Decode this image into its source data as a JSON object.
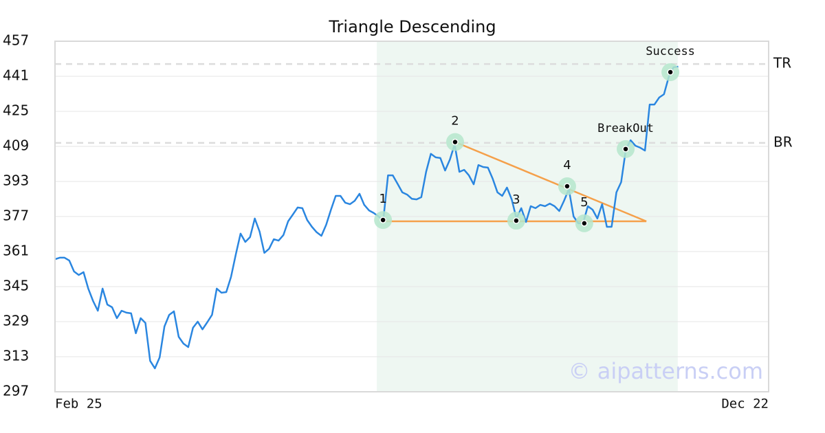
{
  "chart_data": {
    "type": "line",
    "title": "Triangle Descending",
    "color": "#2a86e0",
    "x": [
      0,
      2,
      4,
      6,
      8,
      10,
      12,
      14,
      16,
      18,
      20,
      22,
      24,
      26,
      28,
      30,
      32,
      34,
      36,
      38,
      40,
      42,
      44,
      46,
      48,
      50,
      52,
      54,
      56,
      58,
      60,
      62,
      64,
      66,
      68,
      70,
      72,
      74,
      76,
      78,
      80,
      82,
      84,
      86,
      88,
      90,
      92,
      94,
      96,
      98,
      100,
      102,
      104,
      106,
      108,
      110,
      112,
      114,
      116,
      118,
      120,
      122,
      124,
      126,
      128,
      130,
      132,
      134,
      136,
      138,
      140,
      142,
      144,
      146,
      148,
      150,
      152,
      154,
      156,
      158,
      160,
      162,
      164,
      166,
      168,
      170,
      172,
      174,
      176,
      178,
      180,
      182,
      184,
      186,
      188,
      190,
      192,
      194,
      196,
      198,
      200,
      202,
      204,
      206,
      208,
      210,
      212,
      214,
      216,
      218,
      220,
      222,
      224,
      226,
      228,
      230,
      232,
      234,
      236,
      238,
      240,
      242,
      244,
      246,
      248,
      250,
      252,
      254,
      256,
      258,
      260,
      262
    ],
    "values": [
      357.5,
      358.2,
      358.2,
      356.9,
      351.9,
      350.3,
      351.6,
      344.1,
      338.4,
      334.0,
      344.1,
      336.8,
      335.6,
      330.6,
      334.0,
      333.1,
      332.8,
      323.7,
      330.6,
      328.4,
      311.1,
      307.7,
      312.7,
      326.8,
      332.1,
      333.7,
      322.1,
      319.0,
      317.4,
      326.2,
      329.0,
      325.5,
      328.7,
      332.1,
      344.1,
      342.2,
      342.5,
      349.4,
      359.7,
      369.2,
      365.4,
      367.6,
      376.1,
      370.1,
      360.4,
      362.3,
      366.6,
      366.0,
      368.5,
      374.8,
      377.9,
      381.1,
      380.8,
      375.4,
      372.3,
      369.8,
      368.2,
      373.2,
      380.1,
      386.4,
      386.4,
      383.3,
      382.6,
      384.2,
      387.4,
      382.3,
      379.8,
      378.6,
      377.0,
      375.4,
      395.8,
      395.8,
      392.0,
      388.0,
      387.0,
      385.1,
      384.8,
      385.8,
      397.4,
      405.6,
      404.0,
      403.7,
      398.0,
      403.0,
      409.9,
      397.4,
      398.3,
      395.8,
      391.7,
      400.5,
      399.6,
      399.3,
      394.3,
      388.0,
      386.4,
      390.2,
      384.8,
      376.1,
      380.8,
      374.5,
      381.7,
      380.8,
      382.3,
      381.7,
      382.9,
      381.7,
      379.5,
      384.2,
      389.5,
      377.0,
      373.9,
      373.9,
      381.7,
      380.1,
      376.1,
      382.6,
      372.3,
      372.3,
      388.0,
      392.7,
      407.7,
      411.8,
      409.3,
      408.4,
      407.1,
      428.1,
      428.1,
      431.3,
      432.8,
      440.7,
      445.1,
      445.4
    ],
    "xlim": [
      0,
      300
    ],
    "xticks": [
      {
        "value": 0,
        "label": "Feb 25"
      },
      {
        "value": 300,
        "label": "Dec 22"
      }
    ],
    "ylim": [
      297,
      457
    ],
    "yticks": [
      297,
      313,
      329,
      345,
      361,
      377,
      393,
      409,
      425,
      441,
      457
    ],
    "grid": true,
    "highlight_range": [
      135.3,
      261.8
    ],
    "reference_lines": [
      {
        "label": "TR",
        "value": 446.6
      },
      {
        "label": "BR",
        "value": 410.6
      }
    ],
    "trend_lines": [
      {
        "x": [
          138,
          248.6
        ],
        "values": [
          374.8,
          374.8
        ],
        "color": "#f5a04a"
      },
      {
        "x": [
          168.2,
          248.6
        ],
        "values": [
          411.0,
          374.8
        ],
        "color": "#f5a04a"
      }
    ],
    "pattern_points": [
      {
        "label": "1",
        "x": 137.9,
        "value": 375.4
      },
      {
        "label": "2",
        "x": 168.2,
        "value": 411.0
      },
      {
        "label": "3",
        "x": 193.9,
        "value": 375.1
      },
      {
        "label": "4",
        "x": 215.3,
        "value": 390.8
      },
      {
        "label": "5",
        "x": 222.5,
        "value": 373.9
      },
      {
        "label": "BreakOut",
        "x": 239.9,
        "value": 407.8
      },
      {
        "label": "Success",
        "x": 258.7,
        "value": 442.9
      }
    ],
    "watermark": "© aipatterns.com"
  }
}
